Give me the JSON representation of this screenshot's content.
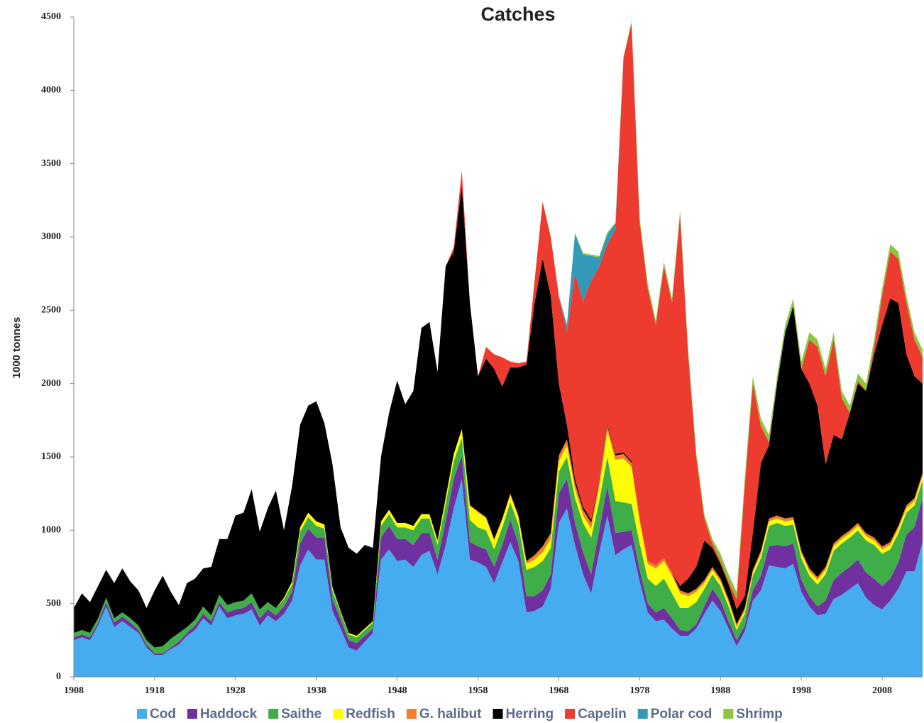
{
  "chart_data": {
    "type": "stacked_area",
    "title": "Catches",
    "y_label": "1000 tonnes",
    "xlim": [
      1908,
      2013
    ],
    "ylim": [
      0,
      4500
    ],
    "xticks": [
      1908,
      1918,
      1928,
      1938,
      1948,
      1958,
      1968,
      1978,
      1988,
      1998,
      2008
    ],
    "yticks": [
      0,
      500,
      1000,
      1500,
      2000,
      2500,
      3000,
      3500,
      4000,
      4500
    ],
    "legend": "bottom",
    "x": [
      1908,
      1909,
      1910,
      1911,
      1912,
      1913,
      1914,
      1915,
      1916,
      1917,
      1918,
      1919,
      1920,
      1921,
      1922,
      1923,
      1924,
      1925,
      1926,
      1927,
      1928,
      1929,
      1930,
      1931,
      1932,
      1933,
      1934,
      1935,
      1936,
      1937,
      1938,
      1939,
      1940,
      1941,
      1942,
      1943,
      1944,
      1945,
      1946,
      1947,
      1948,
      1949,
      1950,
      1951,
      1952,
      1953,
      1954,
      1955,
      1956,
      1957,
      1958,
      1959,
      1960,
      1961,
      1962,
      1963,
      1964,
      1965,
      1966,
      1967,
      1968,
      1969,
      1970,
      1971,
      1972,
      1973,
      1974,
      1975,
      1976,
      1977,
      1978,
      1979,
      1980,
      1981,
      1982,
      1983,
      1984,
      1985,
      1986,
      1987,
      1988,
      1989,
      1990,
      1991,
      1992,
      1993,
      1994,
      1995,
      1996,
      1997,
      1998,
      1999,
      2000,
      2001,
      2002,
      2003,
      2004,
      2005,
      2006,
      2007,
      2008,
      2009,
      2010,
      2011,
      2012,
      2013
    ],
    "series": [
      {
        "name": "Cod",
        "color": "#45acef",
        "values": [
          250,
          270,
          250,
          350,
          480,
          340,
          380,
          340,
          300,
          200,
          150,
          150,
          190,
          220,
          280,
          320,
          400,
          350,
          480,
          400,
          420,
          430,
          460,
          350,
          420,
          380,
          430,
          520,
          760,
          870,
          800,
          800,
          450,
          330,
          200,
          180,
          240,
          300,
          800,
          870,
          790,
          800,
          750,
          830,
          860,
          700,
          900,
          1150,
          1350,
          800,
          780,
          750,
          640,
          780,
          920,
          790,
          440,
          450,
          480,
          600,
          1050,
          1150,
          900,
          700,
          570,
          850,
          1100,
          830,
          870,
          900,
          650,
          440,
          380,
          390,
          330,
          280,
          280,
          330,
          430,
          520,
          450,
          330,
          210,
          310,
          520,
          590,
          760,
          750,
          740,
          770,
          580,
          480,
          420,
          430,
          530,
          560,
          600,
          640,
          540,
          490,
          460,
          520,
          600,
          720,
          720,
          920
        ]
      },
      {
        "name": "Haddock",
        "color": "#7030a0",
        "values": [
          20,
          20,
          20,
          20,
          30,
          30,
          30,
          30,
          20,
          20,
          10,
          10,
          10,
          20,
          20,
          30,
          30,
          30,
          30,
          40,
          40,
          40,
          50,
          50,
          40,
          40,
          50,
          60,
          150,
          140,
          150,
          150,
          80,
          60,
          50,
          50,
          40,
          30,
          150,
          160,
          150,
          140,
          150,
          150,
          120,
          100,
          160,
          200,
          160,
          120,
          110,
          120,
          110,
          120,
          150,
          120,
          110,
          100,
          110,
          100,
          200,
          200,
          150,
          150,
          130,
          150,
          200,
          150,
          120,
          100,
          80,
          60,
          60,
          80,
          70,
          40,
          30,
          30,
          50,
          80,
          70,
          50,
          40,
          40,
          70,
          100,
          130,
          150,
          150,
          140,
          80,
          70,
          60,
          90,
          130,
          150,
          150,
          160,
          170,
          180,
          160,
          150,
          180,
          250,
          300,
          300
        ]
      },
      {
        "name": "Saithe",
        "color": "#3fae49",
        "values": [
          30,
          30,
          30,
          30,
          30,
          30,
          30,
          30,
          30,
          30,
          40,
          50,
          60,
          60,
          40,
          40,
          50,
          40,
          50,
          50,
          50,
          50,
          60,
          60,
          50,
          50,
          50,
          50,
          80,
          80,
          80,
          60,
          60,
          50,
          40,
          40,
          40,
          40,
          80,
          80,
          80,
          80,
          100,
          100,
          100,
          100,
          120,
          120,
          120,
          150,
          130,
          130,
          120,
          120,
          120,
          130,
          180,
          200,
          200,
          180,
          150,
          150,
          170,
          200,
          250,
          200,
          200,
          220,
          200,
          180,
          180,
          170,
          180,
          200,
          170,
          150,
          160,
          150,
          120,
          100,
          100,
          100,
          70,
          80,
          100,
          120,
          140,
          150,
          140,
          130,
          150,
          140,
          150,
          180,
          200,
          200,
          200,
          200,
          220,
          230,
          220,
          200,
          200,
          150,
          150,
          120
        ]
      },
      {
        "name": "Redfish",
        "color": "#ffff00",
        "values": [
          0,
          0,
          0,
          0,
          0,
          0,
          0,
          0,
          0,
          0,
          0,
          0,
          0,
          0,
          0,
          0,
          0,
          0,
          0,
          0,
          0,
          0,
          0,
          0,
          0,
          0,
          10,
          20,
          30,
          30,
          30,
          30,
          20,
          10,
          10,
          10,
          10,
          10,
          30,
          30,
          30,
          30,
          30,
          30,
          30,
          30,
          40,
          50,
          60,
          100,
          100,
          80,
          60,
          50,
          50,
          50,
          40,
          50,
          60,
          60,
          70,
          80,
          60,
          50,
          60,
          100,
          180,
          280,
          300,
          250,
          150,
          100,
          120,
          120,
          120,
          100,
          80,
          70,
          40,
          30,
          30,
          30,
          20,
          20,
          20,
          30,
          30,
          30,
          30,
          30,
          30,
          30,
          30,
          30,
          30,
          30,
          30,
          30,
          30,
          30,
          30,
          30,
          30,
          30,
          30,
          30
        ]
      },
      {
        "name": "G. halibut",
        "color": "#f0802e",
        "values": [
          0,
          0,
          0,
          0,
          0,
          0,
          0,
          0,
          0,
          0,
          0,
          0,
          0,
          0,
          0,
          0,
          0,
          0,
          0,
          0,
          0,
          0,
          0,
          0,
          0,
          0,
          0,
          0,
          0,
          0,
          0,
          0,
          0,
          0,
          0,
          0,
          0,
          0,
          0,
          0,
          0,
          0,
          0,
          0,
          0,
          0,
          0,
          0,
          0,
          0,
          10,
          10,
          10,
          10,
          10,
          10,
          20,
          30,
          40,
          40,
          40,
          40,
          40,
          40,
          40,
          30,
          30,
          30,
          30,
          30,
          20,
          20,
          20,
          20,
          20,
          20,
          20,
          20,
          20,
          20,
          20,
          20,
          20,
          20,
          20,
          20,
          20,
          20,
          20,
          20,
          20,
          20,
          20,
          20,
          20,
          20,
          20,
          20,
          20,
          20,
          20,
          20,
          20,
          20,
          20,
          20
        ]
      },
      {
        "name": "Herring",
        "color": "#000000",
        "values": [
          170,
          250,
          210,
          220,
          190,
          240,
          300,
          250,
          240,
          220,
          390,
          480,
          320,
          190,
          300,
          280,
          260,
          330,
          380,
          450,
          590,
          600,
          710,
          530,
          640,
          800,
          460,
          650,
          700,
          730,
          820,
          690,
          840,
          570,
          580,
          560,
          570,
          500,
          440,
          660,
          970,
          810,
          920,
          1270,
          1310,
          1150,
          1580,
          1380,
          1660,
          1380,
          920,
          1080,
          1160,
          900,
          860,
          1010,
          1340,
          1720,
          1960,
          1620,
          490,
          100,
          30,
          20,
          20,
          10,
          10,
          10,
          10,
          10,
          0,
          0,
          0,
          0,
          0,
          30,
          100,
          150,
          270,
          130,
          100,
          100,
          100,
          80,
          250,
          600,
          500,
          900,
          1270,
          1440,
          1240,
          1260,
          1170,
          700,
          740,
          660,
          800,
          950,
          970,
          1250,
          1510,
          1660,
          1520,
          1030,
          830,
          610
        ]
      },
      {
        "name": "Capelin",
        "color": "#ee3b2f",
        "values": [
          0,
          0,
          0,
          0,
          0,
          0,
          0,
          0,
          0,
          0,
          0,
          0,
          0,
          0,
          0,
          0,
          0,
          0,
          0,
          0,
          0,
          0,
          0,
          0,
          0,
          0,
          0,
          0,
          0,
          0,
          0,
          0,
          0,
          0,
          0,
          0,
          0,
          0,
          0,
          0,
          0,
          0,
          0,
          0,
          0,
          0,
          0,
          30,
          100,
          0,
          0,
          80,
          100,
          200,
          40,
          30,
          20,
          150,
          390,
          400,
          600,
          630,
          1400,
          1400,
          1630,
          1460,
          1230,
          1530,
          2690,
          2990,
          2020,
          1860,
          1640,
          1990,
          1840,
          2530,
          1530,
          750,
          150,
          30,
          20,
          20,
          70,
          750,
          1020,
          250,
          20,
          0,
          0,
          0,
          0,
          300,
          400,
          600,
          650,
          280,
          0,
          20,
          0,
          50,
          200,
          320,
          300,
          350,
          250,
          180
        ]
      },
      {
        "name": "Polar cod",
        "color": "#3399b8",
        "values": [
          0,
          0,
          0,
          0,
          0,
          0,
          0,
          0,
          0,
          0,
          0,
          0,
          0,
          0,
          0,
          0,
          0,
          0,
          0,
          0,
          0,
          0,
          0,
          0,
          0,
          0,
          0,
          0,
          0,
          0,
          0,
          0,
          0,
          0,
          0,
          0,
          0,
          0,
          0,
          0,
          0,
          0,
          0,
          0,
          0,
          0,
          0,
          0,
          0,
          0,
          0,
          0,
          0,
          0,
          0,
          0,
          0,
          0,
          0,
          0,
          0,
          50,
          270,
          320,
          170,
          60,
          70,
          40,
          0,
          0,
          0,
          0,
          0,
          0,
          0,
          0,
          0,
          0,
          0,
          0,
          0,
          0,
          0,
          0,
          0,
          0,
          0,
          0,
          0,
          0,
          0,
          0,
          0,
          0,
          0,
          0,
          0,
          0,
          0,
          0,
          0,
          0,
          0,
          0,
          0,
          0
        ]
      },
      {
        "name": "Shrimp",
        "color": "#8cc63f",
        "values": [
          0,
          0,
          0,
          0,
          0,
          0,
          0,
          0,
          0,
          0,
          0,
          0,
          0,
          0,
          0,
          0,
          0,
          0,
          0,
          0,
          0,
          0,
          0,
          0,
          0,
          0,
          0,
          0,
          0,
          0,
          0,
          0,
          0,
          0,
          0,
          0,
          0,
          0,
          0,
          0,
          0,
          0,
          0,
          0,
          0,
          0,
          0,
          0,
          0,
          0,
          0,
          0,
          0,
          0,
          0,
          0,
          0,
          0,
          0,
          0,
          0,
          0,
          10,
          10,
          10,
          10,
          10,
          10,
          10,
          10,
          30,
          30,
          30,
          30,
          30,
          30,
          30,
          30,
          30,
          30,
          50,
          50,
          50,
          50,
          50,
          50,
          50,
          50,
          50,
          50,
          50,
          50,
          50,
          50,
          50,
          50,
          50,
          50,
          50,
          50,
          50,
          50,
          50,
          50,
          50,
          50
        ]
      }
    ]
  }
}
